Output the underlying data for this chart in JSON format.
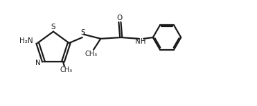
{
  "background": "#ffffff",
  "line_color": "#1a1a1a",
  "line_width": 1.6,
  "figsize": [
    3.71,
    1.53
  ],
  "dpi": 100,
  "xlim": [
    0,
    10
  ],
  "ylim": [
    0,
    4.12
  ]
}
